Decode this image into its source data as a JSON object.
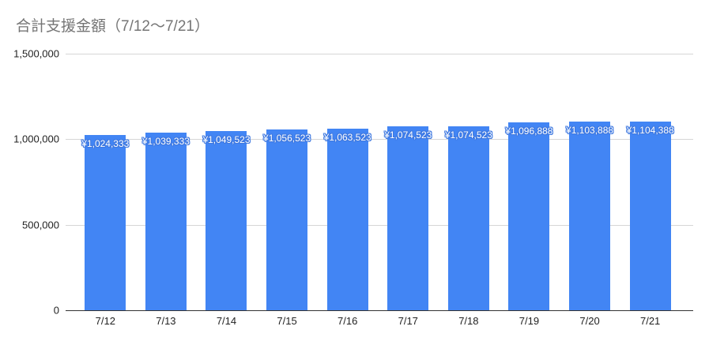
{
  "title": "合計支援金額（7/12～7/21）",
  "colors": {
    "background": "#ffffff",
    "bar": "#4285f4",
    "data_label_text": "#ffffff",
    "data_label_outline": "#3e78e0",
    "title": "#757575",
    "gridline": "#d6d6d6",
    "axis_line": "#333333",
    "tick_text": "#222222"
  },
  "chart_data": {
    "type": "bar",
    "title": "合計支援金額（7/12～7/21）",
    "categories": [
      "7/12",
      "7/13",
      "7/14",
      "7/15",
      "7/16",
      "7/17",
      "7/18",
      "7/19",
      "7/20",
      "7/21"
    ],
    "values": [
      1024333,
      1039333,
      1049523,
      1056523,
      1063523,
      1074523,
      1074523,
      1096888,
      1103888,
      1104388
    ],
    "data_labels": [
      "¥1,024,333",
      "¥1,039,333",
      "¥1,049,523",
      "¥1,056,523",
      "¥1,063,523",
      "¥1,074,523",
      "¥1,074,523",
      "¥1,096,888",
      "¥1,103,888",
      "¥1,104,388"
    ],
    "xlabel": "",
    "ylabel": "",
    "ylim": [
      0,
      1500000
    ],
    "ytick_labels": [
      "1,500,000",
      "1,000,000",
      "500,000",
      "0"
    ],
    "ytick_values": [
      1500000,
      1000000,
      500000,
      0
    ],
    "grid": true,
    "legend": "none"
  }
}
